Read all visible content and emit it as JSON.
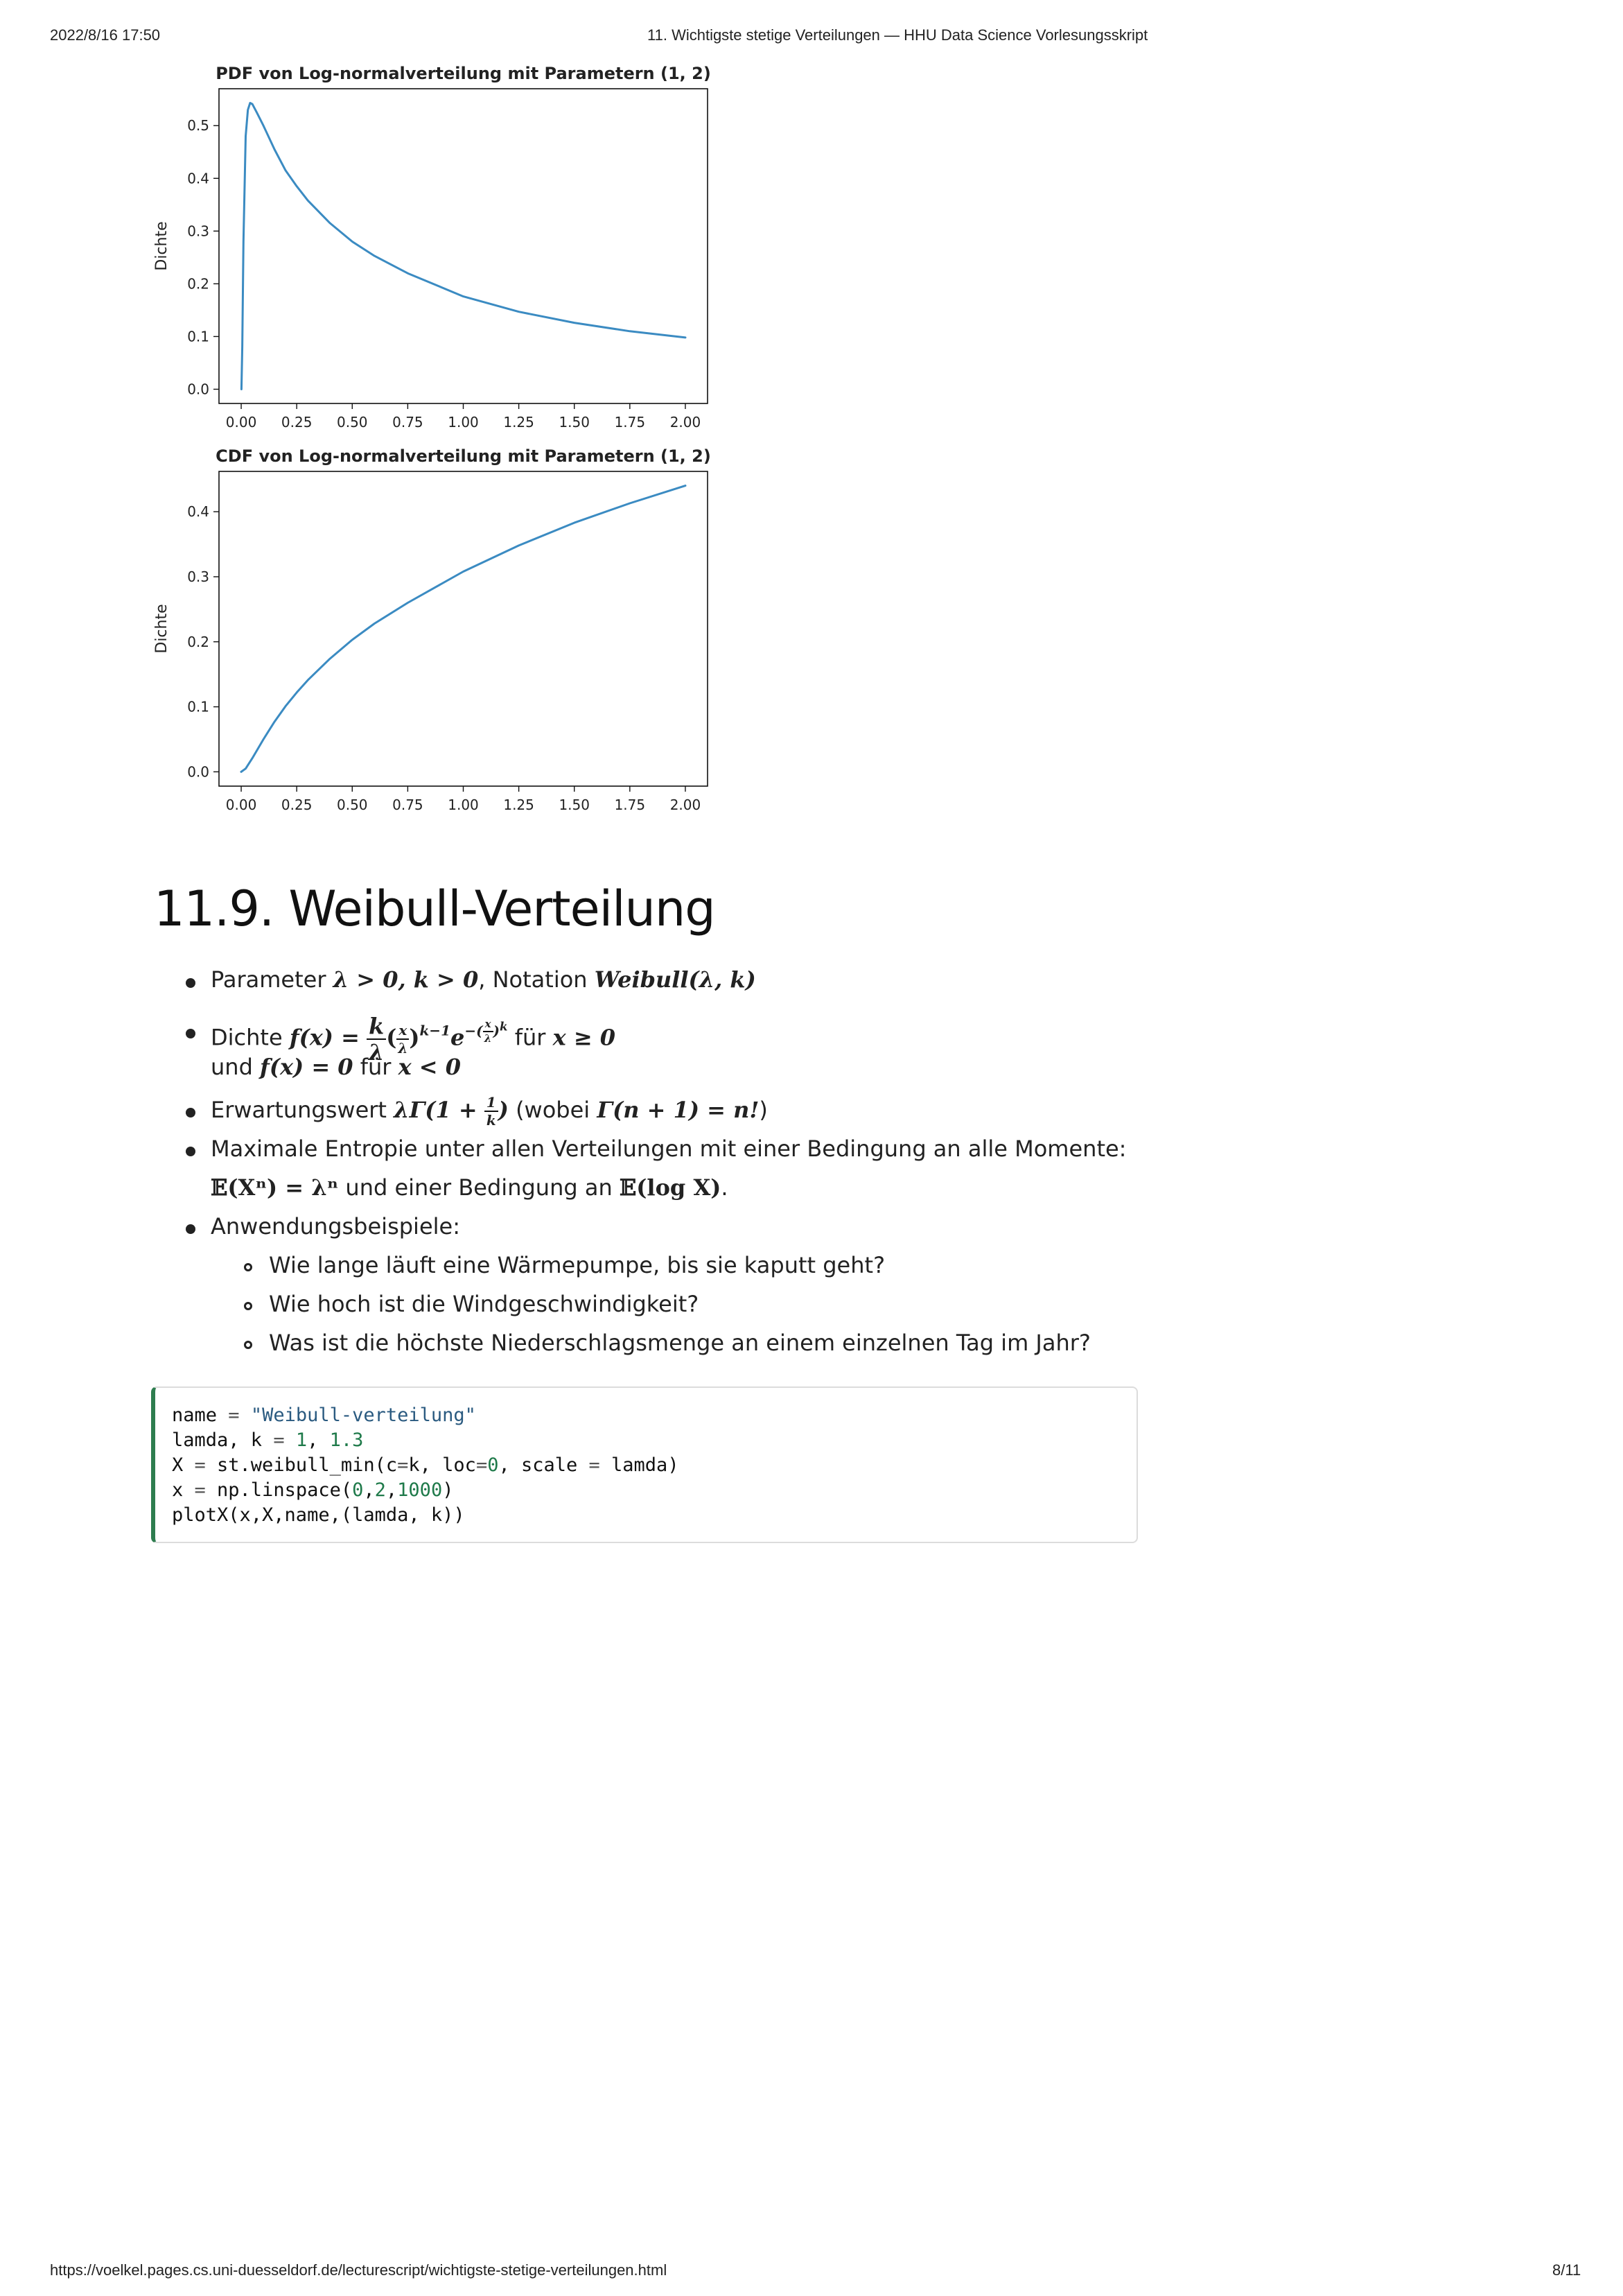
{
  "header": {
    "datetime": "2022/8/16 17:50",
    "page_title": "11. Wichtigste stetige Verteilungen — HHU Data Science Vorlesungsskript"
  },
  "footer": {
    "url": "https://voelkel.pages.cs.uni-duesseldorf.de/lecturescript/wichtigste-stetige-verteilungen.html",
    "page_number": "8/11"
  },
  "colors": {
    "line": "#3b8bc2",
    "code_accent": "#2e7d4f"
  },
  "chart_data": [
    {
      "type": "line",
      "title": "PDF von Log-normalverteilung mit Parametern (1, 2)",
      "xlabel": "",
      "ylabel": "Dichte",
      "xlim": [
        -0.1,
        2.1
      ],
      "ylim": [
        -0.027,
        0.57
      ],
      "x_ticks": [
        "0.00",
        "0.25",
        "0.50",
        "0.75",
        "1.00",
        "1.25",
        "1.50",
        "1.75",
        "2.00"
      ],
      "y_ticks": [
        "0.0",
        "0.1",
        "0.2",
        "0.3",
        "0.4",
        "0.5"
      ],
      "series": [
        {
          "x": [
            0.001,
            0.005,
            0.01,
            0.02,
            0.03,
            0.04,
            0.05,
            0.07,
            0.1,
            0.15,
            0.2,
            0.25,
            0.3,
            0.4,
            0.5,
            0.6,
            0.75,
            1.0,
            1.25,
            1.5,
            1.75,
            2.0
          ],
          "y": [
            0.0,
            0.08,
            0.28,
            0.48,
            0.53,
            0.543,
            0.541,
            0.525,
            0.5,
            0.455,
            0.415,
            0.385,
            0.358,
            0.315,
            0.28,
            0.253,
            0.22,
            0.176,
            0.147,
            0.126,
            0.11,
            0.098
          ]
        }
      ]
    },
    {
      "type": "line",
      "title": "CDF von Log-normalverteilung mit Parametern (1, 2)",
      "xlabel": "",
      "ylabel": "Dichte",
      "xlim": [
        -0.1,
        2.1
      ],
      "ylim": [
        -0.022,
        0.462
      ],
      "x_ticks": [
        "0.00",
        "0.25",
        "0.50",
        "0.75",
        "1.00",
        "1.25",
        "1.50",
        "1.75",
        "2.00"
      ],
      "y_ticks": [
        "0.0",
        "0.1",
        "0.2",
        "0.3",
        "0.4"
      ],
      "series": [
        {
          "x": [
            0.0,
            0.02,
            0.05,
            0.1,
            0.15,
            0.2,
            0.25,
            0.3,
            0.4,
            0.5,
            0.6,
            0.75,
            1.0,
            1.25,
            1.5,
            1.75,
            2.0
          ],
          "y": [
            0.0,
            0.005,
            0.021,
            0.05,
            0.077,
            0.101,
            0.122,
            0.141,
            0.174,
            0.203,
            0.228,
            0.26,
            0.308,
            0.348,
            0.383,
            0.413,
            0.44
          ]
        }
      ]
    }
  ],
  "section": {
    "heading": "11.9. Weibull-Verteilung",
    "bullets": {
      "parameter_prefix": "Parameter",
      "parameter_math": "λ > 0, k > 0",
      "notation_prefix": ", Notation",
      "notation_math": "Weibull(λ, k)",
      "density_prefix": "Dichte",
      "density_fx": "f(x) =",
      "density_k": "k",
      "density_lambda": "λ",
      "density_exp": "k−1",
      "density_e": "e",
      "density_eexp": "−(x/λ)^k",
      "density_fuer": "für",
      "density_cond": "x ≥ 0",
      "density_and": "und",
      "density_zero": "f(x) = 0",
      "density_fuer2": "für",
      "density_cond2": "x < 0",
      "expect_prefix": "Erwartungswert",
      "expect_math": "λΓ(1 +",
      "expect_math_close": ")",
      "expect_note_open": "(wobei",
      "expect_note_math": "Γ(n + 1) = n!",
      "expect_note_close": ")",
      "entropy_line1": "Maximale Entropie unter allen Verteilungen mit einer Bedingung an alle Momente:",
      "entropy_math1": "𝔼(Xⁿ) = λⁿ",
      "entropy_mid": "und einer Bedingung an",
      "entropy_math2": "𝔼(log X)",
      "entropy_end": ".",
      "examples_label": "Anwendungsbeispiele:",
      "examples": [
        "Wie lange läuft eine Wärmepumpe, bis sie kaputt geht?",
        "Wie hoch ist die Windgeschwindigkeit?",
        "Was ist die höchste Niederschlagsmenge an einem einzelnen Tag im Jahr?"
      ]
    }
  },
  "code": {
    "lines": [
      "name = \"Weibull-verteilung\"",
      "lamda, k = 1, 1.3",
      "X = st.weibull_min(c=k, loc=0, scale = lamda)",
      "x = np.linspace(0,2,1000)",
      "plotX(x,X,name,(lamda, k))"
    ]
  }
}
